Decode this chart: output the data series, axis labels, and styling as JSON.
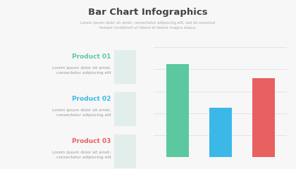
{
  "title": "Bar Chart Infographics",
  "subtitle": "Lorem ipsum dolor sit amet, consectetur adipiscing elit, sed do eiusmod\ntempor incididunt ut labore et dolore magna aliqua.",
  "products": [
    {
      "name": "Product 01",
      "color": "#5CC8A0",
      "desc": "Lorem ipsum dolor sit amet,\nconsectetur adipiscing elit"
    },
    {
      "name": "Product 02",
      "color": "#3BB8E8",
      "desc": "Lorem ipsum dolor sit amet,\nconsectetur adipiscing elit"
    },
    {
      "name": "Product 03",
      "color": "#E96060",
      "desc": "Lorem ipsum dolor sit amet,\nconsectetur adipiscing elit"
    }
  ],
  "bar_values": [
    0.85,
    0.45,
    0.72
  ],
  "bar_colors": [
    "#5CC8A0",
    "#3BB8E8",
    "#E96060"
  ],
  "background": "#f7f7f7",
  "title_color": "#444444",
  "subtitle_color": "#aaaaaa",
  "desc_color": "#999999",
  "box_color": "#e2eeeb",
  "grid_color": "#e0e0e0"
}
